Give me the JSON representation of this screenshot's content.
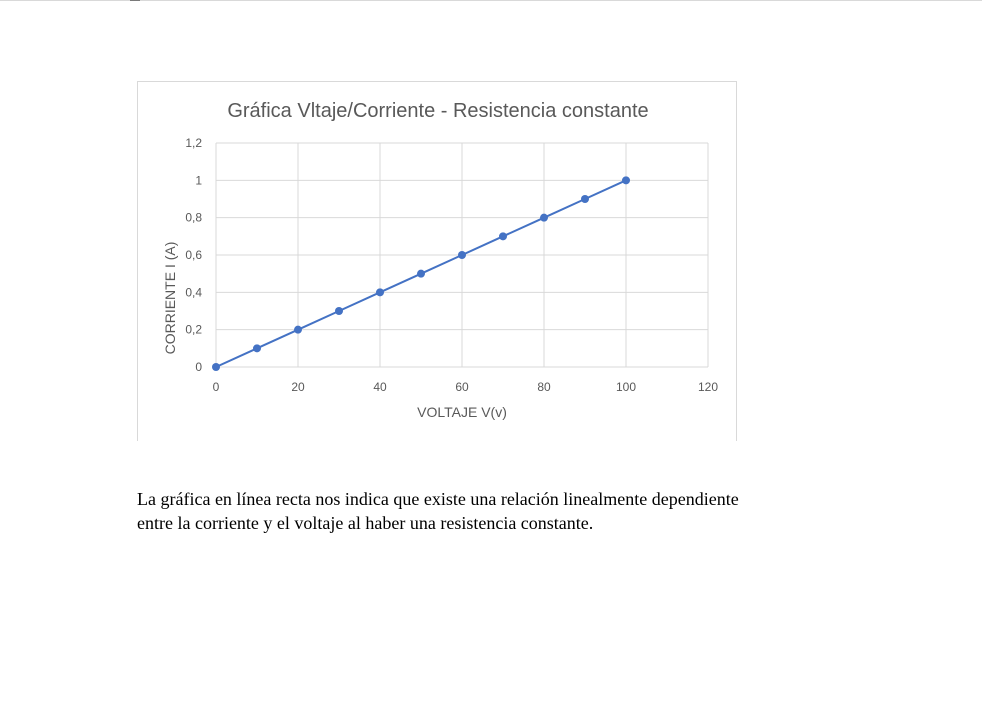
{
  "document": {
    "paragraph_line_1": "La gráfica en línea recta nos indica que existe una relación linealmente dependiente",
    "paragraph_line_2": "entre la corriente y el voltaje al haber una resistencia constante."
  },
  "chart_data": {
    "type": "scatter",
    "title": "Gráfica Vltaje/Corriente - Resistencia constante",
    "xlabel": "VOLTAJE V(v)",
    "ylabel": "CORRIENTE I (A)",
    "xlim": [
      0,
      120
    ],
    "ylim": [
      0,
      1.2
    ],
    "x_ticks": [
      0,
      20,
      40,
      60,
      80,
      100,
      120
    ],
    "y_ticks": [
      0,
      0.2,
      0.4,
      0.6,
      0.8,
      1,
      1.2
    ],
    "x_tick_labels": [
      "0",
      "20",
      "40",
      "60",
      "80",
      "100",
      "120"
    ],
    "y_tick_labels": [
      "0",
      "0,2",
      "0,4",
      "0,6",
      "0,8",
      "1",
      "1,2"
    ],
    "grid": true,
    "legend": "none",
    "connected": true,
    "series": [
      {
        "x": [
          0,
          10,
          20,
          30,
          40,
          50,
          60,
          70,
          80,
          90,
          100
        ],
        "y": [
          0,
          0.1,
          0.2,
          0.3,
          0.4,
          0.5,
          0.6,
          0.7,
          0.8,
          0.9,
          1.0
        ]
      }
    ],
    "colors": {
      "series": "#4472c4",
      "grid": "#d9d9d9",
      "text": "#595959"
    }
  }
}
